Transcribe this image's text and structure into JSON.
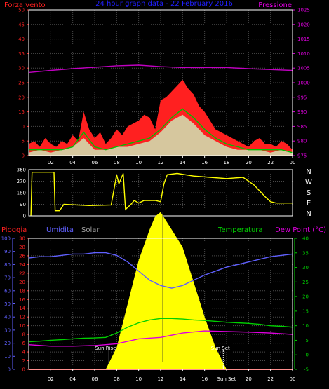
{
  "header": {
    "wind_label": "Forza vento",
    "title": "24 hour graph data - 22 February 2016",
    "pressure_label": "Pressione"
  },
  "labels": {
    "rain": "Pioggia",
    "humidity": "Umidita",
    "solar": "Solar",
    "temperature": "Temperatura",
    "dewpoint": "Dew Point (°C)",
    "sunrise": "Sun Rise",
    "sunset": "Sun Set"
  },
  "colors": {
    "wind": "#ff0000",
    "gust": "#ff2020",
    "wind_avg": "#00c000",
    "wind_speed": "#c8ffc8",
    "pressure": "#c000c0",
    "direction": "#ffff00",
    "humidity": "#6060ff",
    "solar": "#ffff00",
    "temperature": "#00d000",
    "dewpoint": "#e000e0",
    "rain": "#ff2020",
    "grid": "#4a4a4a",
    "axis": "#ffffff"
  },
  "chart_data": [
    {
      "type": "area",
      "id": "wind-pressure",
      "x_ticks": [
        "02",
        "04",
        "06",
        "08",
        "10",
        "12",
        "14",
        "16",
        "18",
        "20",
        "22",
        "00"
      ],
      "xlim": [
        0,
        24
      ],
      "y_left_ticks": [
        "0",
        "5",
        "10",
        "15",
        "20",
        "25",
        "30",
        "35",
        "40",
        "45",
        "50"
      ],
      "ylim_left": [
        0,
        50
      ],
      "y_right_ticks": [
        "975",
        "980",
        "985",
        "990",
        "995",
        "1000",
        "1005",
        "1010",
        "1015",
        "1020",
        "1025"
      ],
      "ylim_right": [
        975,
        1025
      ],
      "grid": true,
      "series": [
        {
          "key": "gust",
          "x": [
            0,
            0.5,
            1,
            1.5,
            2,
            2.5,
            3,
            3.5,
            4,
            4.5,
            5,
            5.5,
            6,
            6.5,
            7,
            7.5,
            8,
            8.5,
            9,
            9.5,
            10,
            10.5,
            11,
            11.5,
            12,
            12.5,
            13,
            13.5,
            14,
            14.5,
            15,
            15.5,
            16,
            16.5,
            17,
            17.5,
            18,
            18.5,
            19,
            19.5,
            20,
            20.5,
            21,
            21.5,
            22,
            22.5,
            23,
            23.5,
            24
          ],
          "y": [
            4,
            5,
            3,
            6,
            4,
            3,
            5,
            4,
            7,
            5,
            15,
            9,
            6,
            8,
            4,
            6,
            9,
            7,
            10,
            11,
            12,
            14,
            13,
            9,
            19,
            20,
            22,
            24,
            26,
            23,
            21,
            17,
            15,
            12,
            9,
            8,
            7,
            6,
            5,
            4,
            3,
            5,
            6,
            4,
            4,
            3,
            5,
            4,
            2
          ]
        },
        {
          "key": "wind_avg",
          "x": [
            0,
            1,
            2,
            3,
            4,
            5,
            6,
            7,
            8,
            9,
            10,
            11,
            12,
            13,
            14,
            15,
            16,
            17,
            18,
            19,
            20,
            21,
            22,
            23,
            24
          ],
          "y": [
            2,
            2,
            2,
            2,
            3,
            8,
            3,
            2,
            3,
            4,
            5,
            6,
            9,
            13,
            16,
            13,
            9,
            6,
            4,
            3,
            2,
            2,
            2,
            2,
            1
          ]
        },
        {
          "key": "wind_speed",
          "x": [
            0,
            1,
            2,
            3,
            4,
            5,
            6,
            7,
            8,
            9,
            10,
            11,
            12,
            13,
            14,
            15,
            16,
            17,
            18,
            19,
            20,
            21,
            22,
            23,
            24
          ],
          "y": [
            1,
            2,
            1,
            2,
            3,
            6,
            2,
            2,
            3,
            3,
            4,
            5,
            8,
            12,
            14,
            11,
            7,
            5,
            3,
            2,
            2,
            2,
            1,
            2,
            1
          ]
        },
        {
          "key": "pressure",
          "x": [
            0,
            2,
            4,
            6,
            8,
            10,
            12,
            14,
            16,
            18,
            20,
            22,
            24
          ],
          "y": [
            1003.5,
            1004.2,
            1004.8,
            1005.3,
            1005.8,
            1006,
            1005.5,
            1005.2,
            1005.2,
            1005.2,
            1004.8,
            1004.5,
            1004.2
          ]
        }
      ]
    },
    {
      "type": "line",
      "id": "direction",
      "x_ticks": [],
      "xlim": [
        0,
        24
      ],
      "y_left_ticks": [
        "0",
        "90",
        "180",
        "270",
        "360"
      ],
      "ylim": [
        0,
        360
      ],
      "y_right_ticks": [
        "N",
        "E",
        "S",
        "W",
        "N"
      ],
      "grid": true,
      "series": [
        {
          "key": "direction",
          "x": [
            0.2,
            0.3,
            2.3,
            2.4,
            2.8,
            3.2,
            5.5,
            7.5,
            8,
            8.2,
            8.6,
            8.8,
            9.3,
            9.6,
            10,
            10.5,
            11.5,
            12,
            12.3,
            12.6,
            13.5,
            15,
            16.5,
            18,
            19.5,
            20.5,
            21.5,
            22,
            22.5,
            24
          ],
          "y": [
            0,
            340,
            340,
            40,
            40,
            90,
            80,
            85,
            320,
            250,
            330,
            50,
            90,
            120,
            100,
            120,
            120,
            110,
            250,
            320,
            330,
            310,
            300,
            290,
            300,
            240,
            150,
            110,
            100,
            100
          ]
        }
      ]
    },
    {
      "type": "area",
      "id": "temperature-humidity-solar",
      "x_ticks": [
        "02",
        "04",
        "06",
        "08",
        "10",
        "12",
        "14",
        "16",
        "Sun Set",
        "20",
        "22",
        "00"
      ],
      "xlim": [
        0,
        24
      ],
      "y_left_ticks": [
        "0",
        "10",
        "20",
        "30",
        "40",
        "50",
        "60",
        "70",
        "80",
        "90",
        "100"
      ],
      "ylim_left": [
        0,
        100
      ],
      "y_mid_ticks": [
        "0",
        "2",
        "4",
        "6",
        "8",
        "10",
        "12",
        "14",
        "16",
        "18",
        "20",
        "22",
        "24",
        "26",
        "28",
        "30"
      ],
      "y_right_ticks": [
        "-5",
        "0",
        "5",
        "10",
        "15",
        "20",
        "25",
        "30",
        "35",
        "40"
      ],
      "ylim_right": [
        -5,
        40
      ],
      "grid": true,
      "sunrise_x": 7.3,
      "sunset_x": 17.7,
      "series": [
        {
          "key": "humidity",
          "x": [
            0,
            1,
            2,
            3,
            4,
            5,
            6,
            7,
            8,
            9,
            10,
            11,
            12,
            13,
            14,
            15,
            16,
            17,
            18,
            19,
            20,
            21,
            22,
            23,
            24
          ],
          "y": [
            85,
            86,
            86,
            87,
            88,
            88,
            89,
            89,
            87,
            82,
            75,
            68,
            64,
            62,
            64,
            68,
            72,
            75,
            78,
            80,
            82,
            84,
            86,
            87,
            88
          ]
        },
        {
          "key": "temperature",
          "x": [
            0,
            1,
            2,
            3,
            4,
            5,
            6,
            7,
            8,
            9,
            10,
            11,
            12,
            13,
            14,
            15,
            16,
            17,
            18,
            19,
            20,
            21,
            22,
            23,
            24
          ],
          "y": [
            4.5,
            4.7,
            5.0,
            5.2,
            5.5,
            5.7,
            5.8,
            6.0,
            7.5,
            9.5,
            11.0,
            12.0,
            12.5,
            12.5,
            12.3,
            12.0,
            11.8,
            11.5,
            11.2,
            11.0,
            10.8,
            10.5,
            10.0,
            9.8,
            9.5
          ]
        },
        {
          "key": "dewpoint",
          "x": [
            0,
            2,
            4,
            6,
            8,
            10,
            12,
            14,
            16,
            18,
            20,
            22,
            24
          ],
          "y": [
            3.5,
            3.0,
            3.0,
            3.2,
            3.8,
            5.5,
            6.0,
            7.5,
            8.2,
            8.0,
            7.8,
            7.5,
            7.0
          ]
        },
        {
          "key": "solar",
          "x": [
            7,
            8,
            9,
            10,
            11,
            11.5,
            12,
            12.5,
            13,
            14,
            15,
            16,
            17,
            18
          ],
          "y": [
            0,
            5,
            15,
            25,
            32,
            35,
            36,
            34,
            32,
            28,
            20,
            12,
            5,
            0
          ]
        },
        {
          "key": "rain",
          "x": [
            0,
            24
          ],
          "y": [
            0,
            0
          ]
        }
      ]
    }
  ]
}
